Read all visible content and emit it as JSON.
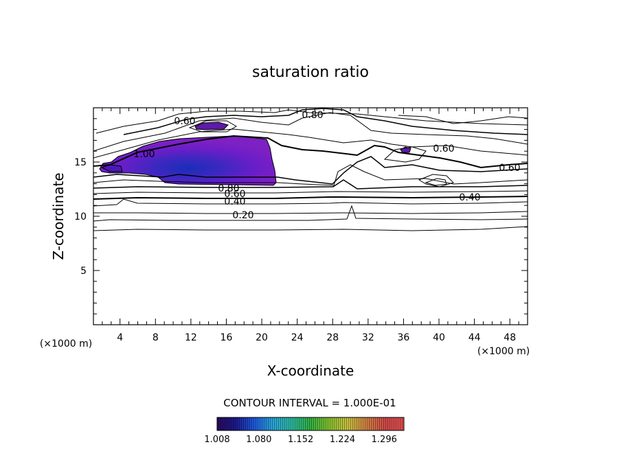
{
  "chart_data": {
    "type": "heatmap",
    "title": "saturation ratio",
    "xlabel": "X-coordinate",
    "ylabel": "Z-coordinate",
    "x_unit": "(×1000 m)",
    "z_unit": "(×1000 m)",
    "xlim": [
      1,
      50
    ],
    "ylim": [
      0,
      20
    ],
    "x_ticks": [
      4,
      8,
      12,
      16,
      20,
      24,
      28,
      32,
      36,
      40,
      44,
      48
    ],
    "y_ticks": [
      5,
      10,
      15
    ],
    "contour_interval_text": "CONTOUR INTERVAL = 1.000E-01",
    "contour_labels": [
      {
        "text": "0.60",
        "x": 10.4,
        "z": 18.7
      },
      {
        "text": "0.80",
        "x": 24.3,
        "z": 19.0
      },
      {
        "text": "0.60",
        "x": 37.9,
        "z": 16.1
      },
      {
        "text": "1.00",
        "x": 5.6,
        "z": 15.5
      },
      {
        "text": "0.60",
        "x": 47.3,
        "z": 14.4
      },
      {
        "text": "0.80",
        "x": 16.3,
        "z": 12.5
      },
      {
        "text": "0.60",
        "x": 16.4,
        "z": 12.0
      },
      {
        "text": "0.40",
        "x": 16.4,
        "z": 11.3
      },
      {
        "text": "0.40",
        "x": 42.3,
        "z": 11.7
      },
      {
        "text": "0.20",
        "x": 17.0,
        "z": 10.0
      }
    ],
    "colorbar": {
      "min": 1.008,
      "max": 1.33,
      "tick_labels": [
        "1.008",
        "1.080",
        "1.152",
        "1.224",
        "1.296"
      ],
      "colors": [
        "#2a0a5e",
        "#1a1a8e",
        "#1e5adc",
        "#2aa5d8",
        "#2cb8a0",
        "#30b040",
        "#88c030",
        "#c8c040",
        "#d08040",
        "#d04848",
        "#e05050"
      ]
    },
    "shaded_regions": [
      {
        "name": "",
        "x_range": [
          3,
          21
        ],
        "z_range": [
          12.9,
          17.3
        ],
        "color": "#7a1ec2"
      },
      {
        "name": "",
        "x_range": [
          12.2,
          16.7
        ],
        "z_range": [
          17.9,
          18.6
        ],
        "color": "#6a1aaa"
      },
      {
        "name": "",
        "x_range": [
          34.8,
          36.6
        ],
        "z_range": [
          15.8,
          16.4
        ],
        "color": "#6a1aaa"
      }
    ]
  }
}
